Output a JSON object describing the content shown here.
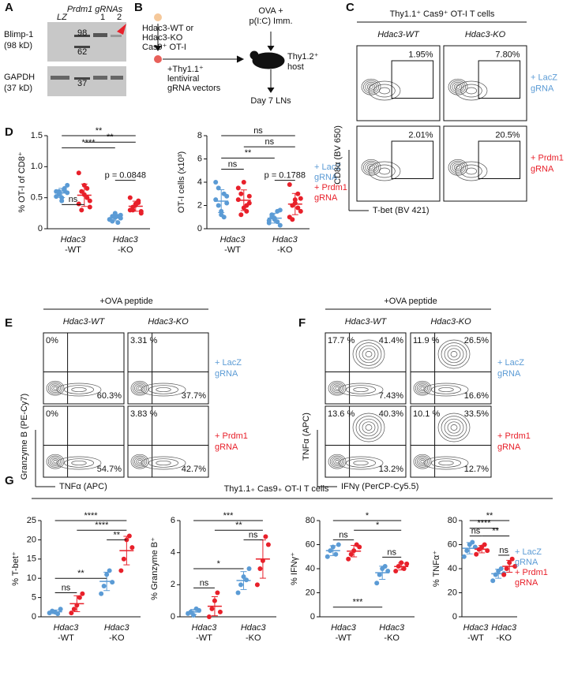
{
  "panel_labels": [
    "A",
    "B",
    "C",
    "D",
    "E",
    "F",
    "G"
  ],
  "colors": [
    "#5b9bd5",
    "#e8202a"
  ],
  "a": {
    "header": "Prdm1 gRNAs",
    "lanes": [
      "LZ",
      "1",
      "2"
    ],
    "markers": [
      "98",
      "62",
      "37"
    ],
    "blots": [
      "Blimp-1",
      "(98 kD)",
      "GAPDH",
      "(37 kD)"
    ]
  },
  "b": {
    "lines": [
      "Hdac3-WT or",
      "Hdac3-KO",
      "Cas9⁺ OT-I",
      "+Thy1.1⁺",
      "lentiviral",
      "gRNA vectors",
      "OVA +",
      "p(I:C) Imm.",
      "Thy1.2⁺",
      "host",
      "Day 7 LNs"
    ]
  },
  "c": {
    "x_labels": [
      "Hdac3",
      "-WT",
      "Hdac3",
      "-KO"
    ],
    "legend": [
      "+ LacZ",
      "gRNA",
      "+ Prdm1",
      "gRNA"
    ],
    "plots": [
      {
        "ylabel": "% OT-I of CD8⁺",
        "ylim": [
          0,
          1.5
        ],
        "yticks": [
          0,
          0.5,
          {
            "value": 1,
            "label": "1.0"
          },
          1.5
        ],
        "groups": [
          [
            0.6,
            0.55,
            0.5,
            0.65,
            0.58,
            0.52,
            0.6,
            0.45,
            0.62,
            0.7
          ],
          [
            0.9,
            0.6,
            0.55,
            0.5,
            0.45,
            0.4,
            0.3,
            0.7,
            0.65,
            0.35
          ],
          [
            0.15,
            0.2,
            0.18,
            0.1,
            0.22,
            0.15,
            0.12,
            0.25,
            0.2,
            0.17
          ],
          [
            0.3,
            0.35,
            0.4,
            0.45,
            0.25,
            0.5,
            0.3,
            0.38,
            0.42,
            0.28
          ]
        ],
        "annotations": [
          "**",
          "****",
          "**",
          "ns",
          "p = 0.0848"
        ]
      },
      {
        "ylabel": "OT-I cells (x10³)",
        "ylim": [
          0,
          8
        ],
        "yticks": [
          0,
          2,
          4,
          6,
          8
        ],
        "groups": [
          [
            2.5,
            3.5,
            1.5,
            1,
            2.8,
            4,
            2,
            1.2,
            3,
            2.2
          ],
          [
            2.5,
            3,
            1.8,
            1.5,
            2.2,
            3.5,
            1.2,
            4,
            2,
            2.8
          ],
          [
            0.5,
            1,
            0.8,
            1.5,
            0.3,
            0.7,
            1.2,
            0.9,
            0.6,
            1.6
          ],
          [
            1,
            2,
            2.5,
            3,
            1.5,
            3.8,
            0.8,
            2.2,
            1.8,
            2.6
          ]
        ],
        "annotations": [
          "ns",
          "ns",
          "**",
          "ns",
          "p = 0.1788"
        ]
      }
    ]
  },
  "d": {
    "title": "Thy1.1⁺ Cas9⁺ OT-I T cells",
    "columns": [
      "Hdac3-WT",
      "Hdac3-KO"
    ],
    "gates": [
      [
        "1.95%",
        "7.80%"
      ],
      [
        "2.01%",
        "20.5%"
      ]
    ],
    "rows": [
      [
        "+ LacZ",
        "gRNA"
      ],
      [
        "+ Prdm1",
        "gRNA"
      ]
    ],
    "y_axis": "CD8α (BV 650)",
    "x_axis": "T-bet (BV 421)"
  },
  "e": {
    "title": "+OVA peptide",
    "columns": [
      "Hdac3-WT",
      "Hdac3-KO"
    ],
    "gates": [
      [
        [
          "0%",
          "60.3%"
        ],
        [
          "3.31 %",
          "37.7%"
        ]
      ],
      [
        [
          "0%",
          "54.7%"
        ],
        [
          "3.83 %",
          "42.7%"
        ]
      ]
    ],
    "rows": [
      [
        "+ LacZ",
        "gRNA"
      ],
      [
        "+ Prdm1",
        "gRNA"
      ]
    ],
    "y_axis": "Granzyme B (PE-Cy7)",
    "x_axis": "TNFα (APC)"
  },
  "f": {
    "title": "+OVA peptide",
    "columns": [
      "Hdac3-WT",
      "Hdac3-KO"
    ],
    "gates": [
      [
        [
          "17.7 %",
          "41.4%",
          "7.43%"
        ],
        [
          "11.9 %",
          "26.5%",
          "16.6%"
        ]
      ],
      [
        [
          "13.6 %",
          "40.3%",
          "13.2%"
        ],
        [
          "10.1 %",
          "33.5%",
          "12.7%"
        ]
      ]
    ],
    "rows": [
      [
        "+ LacZ",
        "gRNA"
      ],
      [
        "+ Prdm1",
        "gRNA"
      ]
    ],
    "y_axis": "TNFα (APC)",
    "x_axis": "IFNγ (PerCP-Cy5.5)"
  },
  "g": {
    "title": "Thy1.1₊ Cas9₊ OT-I T cells",
    "x_labels": [
      "Hdac3",
      "-WT",
      "Hdac3",
      "-KO"
    ],
    "legend": [
      "+ LacZ",
      "gRNA",
      "+ Prdm1",
      "gRNA"
    ],
    "plots": [
      {
        "ylabel": "% T-bet⁺",
        "ylim": [
          0,
          25
        ],
        "yticks": [
          0,
          5,
          10,
          15,
          20,
          25
        ],
        "groups": [
          [
            1,
            1.5,
            1.2,
            0.8,
            2
          ],
          [
            1,
            2,
            3,
            5,
            6
          ],
          [
            6,
            8,
            11,
            12,
            9
          ],
          [
            12,
            15,
            20,
            21,
            18
          ]
        ],
        "annotations": [
          "****",
          "****",
          "**",
          "**",
          "ns"
        ]
      },
      {
        "ylabel": "% Granzyme B⁺",
        "ylim": [
          0,
          6
        ],
        "yticks": [
          0,
          2,
          4,
          6
        ],
        "groups": [
          [
            0.2,
            0.3,
            0.1,
            0.5,
            0.4
          ],
          [
            0,
            0.5,
            1,
            1.5,
            0.3
          ],
          [
            1.5,
            2,
            2.5,
            2.3,
            3
          ],
          [
            2,
            3,
            3.5,
            5,
            4.5
          ]
        ],
        "annotations": [
          "***",
          "**",
          "ns",
          "*",
          "ns"
        ]
      },
      {
        "ylabel": "% IFNγ⁺",
        "ylim": [
          0,
          80
        ],
        "yticks": [
          0,
          20,
          40,
          60,
          80
        ],
        "groups": [
          [
            50,
            55,
            58,
            52,
            60
          ],
          [
            48,
            52,
            55,
            60,
            58
          ],
          [
            28,
            35,
            40,
            42,
            38
          ],
          [
            38,
            42,
            45,
            40,
            44
          ]
        ],
        "annotations": [
          "*",
          "*",
          "ns",
          "ns",
          "***"
        ]
      },
      {
        "ylabel": "% TNFα⁺",
        "ylim": [
          0,
          80
        ],
        "yticks": [
          0,
          20,
          40,
          60,
          80
        ],
        "groups": [
          [
            50,
            55,
            60,
            62,
            58
          ],
          [
            52,
            56,
            58,
            60,
            55
          ],
          [
            30,
            35,
            38,
            40,
            36
          ],
          [
            35,
            40,
            45,
            48,
            42
          ]
        ],
        "annotations": [
          "**",
          "****",
          "**",
          "ns",
          "ns"
        ]
      }
    ]
  }
}
